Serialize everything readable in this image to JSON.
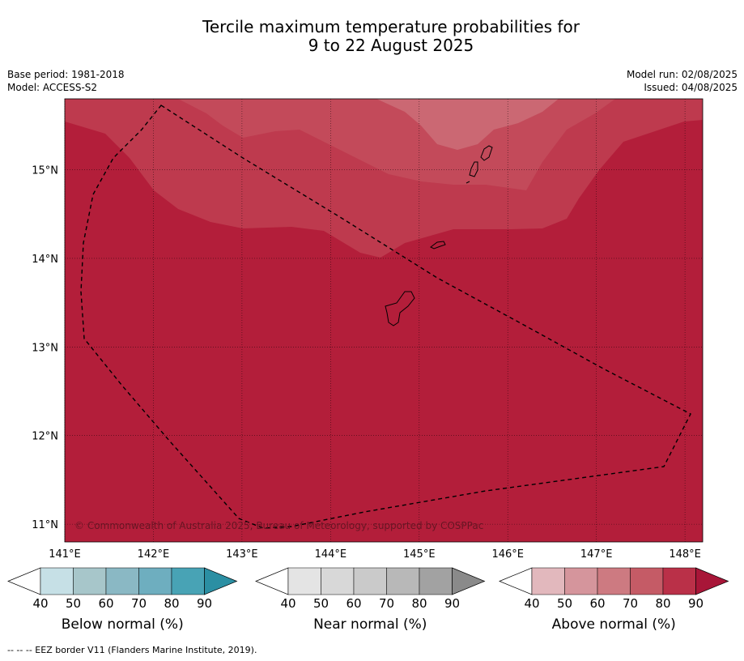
{
  "title_line1": "Tercile maximum temperature probabilities for",
  "title_line2": "9 to 22 August 2025",
  "meta_left": [
    "Base period: 1981-2018",
    "Model: ACCESS-S2"
  ],
  "meta_right": [
    "Model run: 02/08/2025",
    "Issued: 04/08/2025"
  ],
  "copyright": "© Commonwealth of Australia 2025, Bureau of Meteorology, supported by COSPPac",
  "footer": "--  --  -- EEZ border V11 (Flanders Marine Institute, 2019).",
  "map": {
    "lon_ticks": [
      "141°E",
      "142°E",
      "143°E",
      "144°E",
      "145°E",
      "146°E",
      "147°E",
      "148°E"
    ],
    "lat_ticks": [
      "15°N",
      "14°N",
      "13°N",
      "12°N",
      "11°N"
    ],
    "lon_range": [
      141.0,
      148.2
    ],
    "lat_range": [
      10.8,
      15.8
    ],
    "grid": true,
    "border_style": "dashed"
  },
  "colorbars": [
    {
      "name": "below",
      "label": "Below normal (%)",
      "ticks": [
        "40",
        "50",
        "60",
        "70",
        "80",
        "90"
      ],
      "colors": [
        "#ffffff",
        "#c6e0e6",
        "#a7c6ca",
        "#8ab8c4",
        "#6eaebf",
        "#48a3b5",
        "#2b8fa3"
      ]
    },
    {
      "name": "near",
      "label": "Near normal (%)",
      "ticks": [
        "40",
        "50",
        "60",
        "70",
        "80",
        "90"
      ],
      "colors": [
        "#ffffff",
        "#e4e4e4",
        "#d8d8d8",
        "#cacaca",
        "#b8b8b8",
        "#a2a2a2",
        "#8a8a8a"
      ]
    },
    {
      "name": "above",
      "label": "Above normal (%)",
      "ticks": [
        "40",
        "50",
        "60",
        "70",
        "80",
        "90"
      ],
      "colors": [
        "#ffffff",
        "#e2b8bd",
        "#d5959c",
        "#cd7a81",
        "#c55b66",
        "#ba3048",
        "#a81638"
      ]
    }
  ],
  "field_colors": {
    "deep": "#b31e3a",
    "mid": "#be3a4e",
    "light": "#c34a5a",
    "top": "#cb6873"
  }
}
